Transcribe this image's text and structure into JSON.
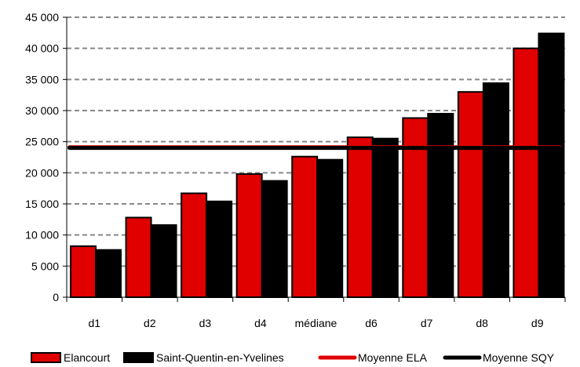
{
  "chart_data": {
    "type": "bar",
    "categories": [
      "d1",
      "d2",
      "d3",
      "d4",
      "médiane",
      "d6",
      "d7",
      "d8",
      "d9"
    ],
    "series": [
      {
        "name": "Elancourt",
        "color": "#e00000",
        "values": [
          8200,
          12800,
          16700,
          19800,
          22600,
          25700,
          28800,
          33000,
          40000
        ]
      },
      {
        "name": "Saint-Quentin-en-Yvelines",
        "color": "#000000",
        "values": [
          7600,
          11600,
          15400,
          18700,
          22100,
          25500,
          29500,
          34400,
          42400
        ]
      }
    ],
    "lines": [
      {
        "name": "Moyenne ELA",
        "color": "#e00000",
        "value": 24100
      },
      {
        "name": "Moyenne SQY",
        "color": "#000000",
        "value": 24000
      }
    ],
    "ylim": [
      0,
      45000
    ],
    "yticks": [
      "0",
      "5 000",
      "10 000",
      "15 000",
      "20 000",
      "25 000",
      "30 000",
      "35 000",
      "40 000",
      "45 000"
    ],
    "grid": true,
    "legend_position": "bottom"
  }
}
